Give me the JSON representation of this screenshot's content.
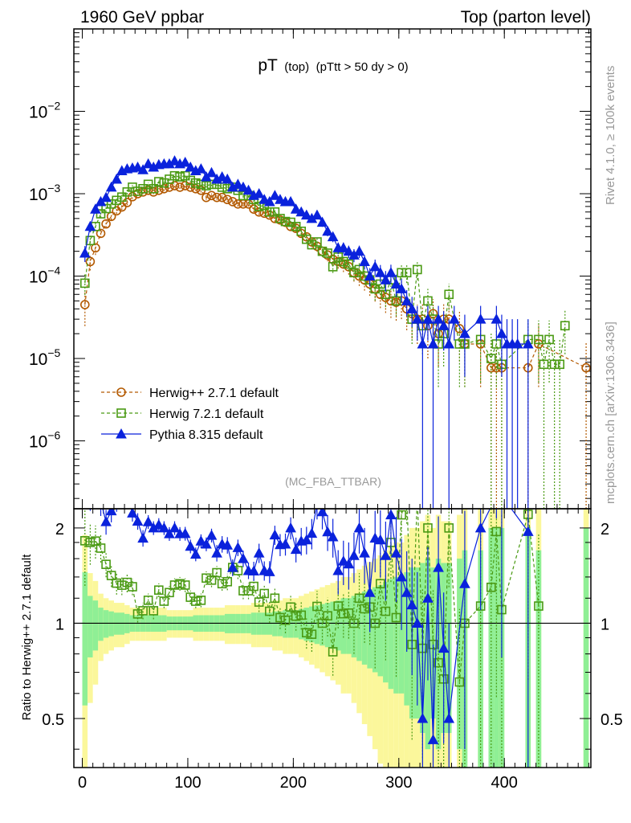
{
  "header": {
    "left": "1960 GeV ppbar",
    "right": "Top (parton level)"
  },
  "chart_data": {
    "type": "scatter",
    "title": "pT",
    "subtitle_mid": "(top)",
    "subtitle_cut": "(pTtt > 50 dy > 0)",
    "analysis": "(MC_FBA_TTBAR)",
    "side_rivet": "Rivet 4.1.0, ≥ 100k events",
    "side_mcplots": "mcplots.cern.ch [arXiv:1306.3436]",
    "xlim": [
      -8,
      482
    ],
    "xticks": [
      0,
      100,
      200,
      300,
      400
    ],
    "xtick_labels": [
      "0",
      "100",
      "200",
      "300",
      "400"
    ],
    "ylim": [
      1.5e-07,
      0.1
    ],
    "yscale": "log",
    "yticks": [
      1e-06,
      1e-05,
      0.0001,
      0.001,
      0.01
    ],
    "ytick_mantissa": [
      "10",
      "10",
      "10",
      "10",
      "10"
    ],
    "ytick_exp": [
      "−6",
      "−5",
      "−4",
      "−3",
      "−2"
    ],
    "ratio_ylabel": "Ratio to Herwig++ 2.7.1 default",
    "ratio_ylim": [
      0.35,
      2.3
    ],
    "ratio_yticks": [
      0.5,
      1,
      2
    ],
    "ratio_ytick_labels": [
      "0.5",
      "1",
      "2"
    ],
    "series": [
      {
        "name": "Herwig++ 2.7.1 default",
        "color": "#b35900",
        "marker": "circle",
        "line": "dashed",
        "x": [
          2.5,
          7.5,
          12.5,
          17.5,
          22.5,
          27.5,
          32.5,
          37.5,
          42.5,
          47.5,
          52.5,
          57.5,
          62.5,
          67.5,
          72.5,
          77.5,
          82.5,
          87.5,
          92.5,
          97.5,
          102.5,
          107.5,
          112.5,
          117.5,
          122.5,
          127.5,
          132.5,
          137.5,
          142.5,
          147.5,
          152.5,
          157.5,
          162.5,
          167.5,
          172.5,
          177.5,
          182.5,
          187.5,
          192.5,
          197.5,
          202.5,
          207.5,
          212.5,
          217.5,
          222.5,
          227.5,
          232.5,
          237.5,
          242.5,
          247.5,
          252.5,
          257.5,
          262.5,
          267.5,
          272.5,
          277.5,
          282.5,
          287.5,
          292.5,
          297.5,
          302.5,
          307.5,
          312.5,
          317.5,
          322.5,
          327.5,
          332.5,
          337.5,
          342.5,
          347.5,
          357.5,
          362.5,
          377.5,
          387.5,
          392.5,
          397.5,
          422.5,
          432.5,
          477.5
        ],
        "y": [
          4.5e-05,
          0.00015,
          0.00022,
          0.00033,
          0.00043,
          0.00053,
          0.00062,
          0.00069,
          0.00078,
          0.00092,
          0.001,
          0.00105,
          0.0011,
          0.00105,
          0.0011,
          0.00115,
          0.0012,
          0.00125,
          0.0012,
          0.00125,
          0.0012,
          0.00115,
          0.0011,
          0.0009,
          0.00095,
          0.0009,
          0.0009,
          0.00085,
          0.0008,
          0.00075,
          0.00075,
          0.00075,
          0.00065,
          0.0006,
          0.00058,
          0.00055,
          0.0005,
          0.00048,
          0.00045,
          0.0004,
          0.00038,
          0.00033,
          0.0003,
          0.00026,
          0.00023,
          0.0002,
          0.00018,
          0.00016,
          0.00015,
          0.00014,
          0.00013,
          0.00011,
          0.0001,
          9e-05,
          8e-05,
          7e-05,
          6e-05,
          5.5e-05,
          5e-05,
          4.8e-05,
          5e-05,
          4e-05,
          3.5e-05,
          3e-05,
          3e-05,
          2.5e-05,
          3.5e-05,
          2e-05,
          3e-05,
          3e-05,
          2.3e-05,
          1.5e-05,
          1.5e-05,
          7.7e-06,
          7.7e-06,
          7.7e-06,
          7.7e-06,
          1.5e-05,
          7.7e-06
        ],
        "yerr": [
          0.45,
          0.22,
          0.18,
          0.12,
          0.1,
          0.09,
          0.08,
          0.08,
          0.07,
          0.06,
          0.06,
          0.06,
          0.06,
          0.06,
          0.06,
          0.06,
          0.05,
          0.05,
          0.05,
          0.05,
          0.05,
          0.06,
          0.06,
          0.06,
          0.06,
          0.06,
          0.06,
          0.07,
          0.07,
          0.07,
          0.07,
          0.07,
          0.08,
          0.08,
          0.08,
          0.08,
          0.09,
          0.09,
          0.1,
          0.1,
          0.1,
          0.11,
          0.12,
          0.13,
          0.14,
          0.15,
          0.16,
          0.17,
          0.18,
          0.2,
          0.2,
          0.22,
          0.24,
          0.26,
          0.28,
          0.3,
          0.32,
          0.35,
          0.38,
          0.4,
          0.4,
          0.45,
          0.5,
          0.5,
          0.55,
          0.6,
          0.5,
          0.6,
          0.55,
          0.55,
          0.6,
          0.7,
          0.7,
          1.0,
          1.0,
          1.0,
          1.0,
          0.7,
          1.0
        ]
      },
      {
        "name": "Herwig 7.2.1 default",
        "color": "#4a9a13",
        "marker": "square",
        "line": "dashed",
        "x": [
          2.5,
          7.5,
          12.5,
          17.5,
          22.5,
          27.5,
          32.5,
          37.5,
          42.5,
          47.5,
          52.5,
          57.5,
          62.5,
          67.5,
          72.5,
          77.5,
          82.5,
          87.5,
          92.5,
          97.5,
          102.5,
          107.5,
          112.5,
          117.5,
          122.5,
          127.5,
          132.5,
          137.5,
          142.5,
          147.5,
          152.5,
          157.5,
          162.5,
          167.5,
          172.5,
          177.5,
          182.5,
          187.5,
          192.5,
          197.5,
          202.5,
          207.5,
          212.5,
          217.5,
          222.5,
          227.5,
          232.5,
          237.5,
          242.5,
          247.5,
          252.5,
          257.5,
          262.5,
          267.5,
          272.5,
          277.5,
          282.5,
          287.5,
          292.5,
          297.5,
          302.5,
          307.5,
          312.5,
          317.5,
          322.5,
          327.5,
          332.5,
          337.5,
          342.5,
          347.5,
          357.5,
          362.5,
          377.5,
          387.5,
          392.5,
          397.5,
          422.5,
          432.5,
          437.5,
          442.5,
          447.5,
          452.5,
          457.5
        ],
        "y": [
          8.2e-05,
          0.00027,
          0.0004,
          0.00057,
          0.00066,
          0.00075,
          0.00083,
          0.00091,
          0.00105,
          0.0012,
          0.00107,
          0.00115,
          0.0013,
          0.00115,
          0.0014,
          0.00135,
          0.0015,
          0.00165,
          0.0016,
          0.00165,
          0.00145,
          0.00135,
          0.0013,
          0.00125,
          0.0013,
          0.0013,
          0.0012,
          0.00115,
          0.0012,
          0.0011,
          0.00095,
          0.00095,
          0.00085,
          0.0007,
          0.00072,
          0.0006,
          0.0006,
          0.0005,
          0.00046,
          0.00045,
          0.0004,
          0.00035,
          0.00028,
          0.00024,
          0.00026,
          0.0002,
          0.00019,
          0.00013,
          0.00017,
          0.00015,
          0.00014,
          0.00011,
          0.00012,
          0.0001,
          9e-05,
          7e-05,
          8e-05,
          6e-05,
          9e-05,
          5e-05,
          0.00011,
          0.00011,
          3e-05,
          0.00012,
          2.5e-05,
          5e-05,
          3e-05,
          1.5e-05,
          2e-05,
          6e-05,
          1.5e-05,
          1.5e-05,
          1.7e-05,
          1e-05,
          1.5e-05,
          8.5e-06,
          1.7e-05,
          1.7e-05,
          8.5e-06,
          1.7e-05,
          8.5e-06,
          8.5e-06,
          2.5e-05
        ],
        "yerr": [
          0.28,
          0.15,
          0.12,
          0.1,
          0.09,
          0.08,
          0.08,
          0.07,
          0.07,
          0.06,
          0.06,
          0.06,
          0.05,
          0.06,
          0.05,
          0.05,
          0.05,
          0.05,
          0.05,
          0.05,
          0.05,
          0.05,
          0.05,
          0.05,
          0.05,
          0.05,
          0.05,
          0.06,
          0.06,
          0.06,
          0.06,
          0.06,
          0.07,
          0.07,
          0.07,
          0.08,
          0.08,
          0.08,
          0.09,
          0.09,
          0.1,
          0.1,
          0.11,
          0.12,
          0.12,
          0.14,
          0.14,
          0.16,
          0.15,
          0.16,
          0.17,
          0.2,
          0.2,
          0.22,
          0.24,
          0.28,
          0.26,
          0.3,
          0.25,
          0.35,
          0.25,
          0.25,
          0.5,
          0.25,
          0.55,
          0.4,
          0.5,
          0.7,
          0.6,
          0.35,
          0.7,
          0.7,
          0.7,
          1.0,
          0.7,
          1.0,
          0.7,
          0.7,
          1.0,
          0.7,
          1.0,
          1.0,
          0.55
        ]
      },
      {
        "name": "Pythia 8.315 default",
        "color": "#0a22dc",
        "marker": "triangle",
        "line": "solid",
        "x": [
          2.5,
          7.5,
          12.5,
          17.5,
          22.5,
          27.5,
          32.5,
          37.5,
          42.5,
          47.5,
          52.5,
          57.5,
          62.5,
          67.5,
          72.5,
          77.5,
          82.5,
          87.5,
          92.5,
          97.5,
          102.5,
          107.5,
          112.5,
          117.5,
          122.5,
          127.5,
          132.5,
          137.5,
          142.5,
          147.5,
          152.5,
          157.5,
          162.5,
          167.5,
          172.5,
          177.5,
          182.5,
          187.5,
          192.5,
          197.5,
          202.5,
          207.5,
          212.5,
          217.5,
          222.5,
          227.5,
          232.5,
          237.5,
          242.5,
          247.5,
          252.5,
          257.5,
          262.5,
          267.5,
          272.5,
          277.5,
          282.5,
          287.5,
          292.5,
          297.5,
          302.5,
          307.5,
          312.5,
          317.5,
          322.5,
          327.5,
          332.5,
          337.5,
          342.5,
          347.5,
          352.5,
          362.5,
          377.5,
          392.5,
          397.5,
          402.5,
          407.5,
          412.5,
          422.5
        ],
        "y": [
          0.00019,
          0.0004,
          0.00065,
          0.0008,
          0.0009,
          0.0012,
          0.0015,
          0.0019,
          0.002,
          0.00205,
          0.0021,
          0.00195,
          0.0023,
          0.0021,
          0.00225,
          0.0023,
          0.0023,
          0.0025,
          0.0023,
          0.0024,
          0.0021,
          0.0019,
          0.002,
          0.0016,
          0.0018,
          0.0015,
          0.0016,
          0.0015,
          0.0012,
          0.0013,
          0.0012,
          0.0011,
          0.00095,
          0.001,
          0.00085,
          0.0008,
          0.00095,
          0.00085,
          0.0008,
          0.0008,
          0.00065,
          0.0006,
          0.00055,
          0.0005,
          0.00055,
          0.00045,
          0.00035,
          0.0003,
          0.00022,
          0.00022,
          0.0002,
          0.00018,
          0.0002,
          0.00015,
          0.0001,
          0.00013,
          0.00011,
          9e-05,
          0.00011,
          8e-05,
          7e-05,
          5e-05,
          4e-05,
          3e-05,
          1.5e-05,
          3e-05,
          1.5e-05,
          3e-05,
          2.5e-05,
          1.5e-05,
          3e-05,
          2e-05,
          3e-05,
          3e-05,
          2e-05,
          1.5e-05,
          1.5e-05,
          1.5e-05,
          1.5e-05
        ],
        "yerr": [
          0.22,
          0.15,
          0.12,
          0.1,
          0.09,
          0.08,
          0.07,
          0.06,
          0.06,
          0.06,
          0.06,
          0.06,
          0.05,
          0.05,
          0.05,
          0.05,
          0.05,
          0.05,
          0.05,
          0.05,
          0.05,
          0.05,
          0.05,
          0.05,
          0.05,
          0.06,
          0.06,
          0.06,
          0.06,
          0.06,
          0.06,
          0.06,
          0.07,
          0.07,
          0.07,
          0.08,
          0.07,
          0.08,
          0.08,
          0.08,
          0.09,
          0.1,
          0.1,
          0.11,
          0.11,
          0.12,
          0.13,
          0.14,
          0.16,
          0.16,
          0.17,
          0.18,
          0.17,
          0.2,
          0.25,
          0.22,
          0.24,
          0.28,
          0.25,
          0.3,
          0.32,
          0.35,
          0.4,
          0.45,
          1.0,
          0.45,
          1.0,
          0.45,
          0.5,
          1.0,
          0.45,
          0.7,
          0.45,
          0.45,
          0.7,
          1.0,
          1.0,
          1.0,
          1.0
        ]
      }
    ]
  }
}
